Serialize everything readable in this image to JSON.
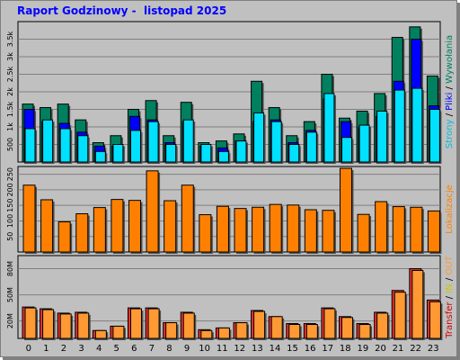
{
  "title": "Raport Godzinowy -  listopad 2025",
  "colors": {
    "background": "#c0c0c0",
    "grid": "#808080",
    "plot_bg": "#c0c0c0",
    "visits": "#00805f",
    "files": "#0000ff",
    "pages": "#00e0ff",
    "hits": "#ff8000",
    "in": "#e8e800",
    "out": "#ff9933",
    "transfer": "#d00000",
    "transfer_bar": "#e83030"
  },
  "chart_data": [
    {
      "type": "bar",
      "name": "hits-files-pages-chart",
      "categories": [
        "0",
        "1",
        "2",
        "3",
        "4",
        "5",
        "6",
        "7",
        "8",
        "9",
        "10",
        "11",
        "12",
        "13",
        "14",
        "15",
        "16",
        "17",
        "18",
        "19",
        "20",
        "21",
        "22",
        "23"
      ],
      "y_ticks": [
        "500",
        "1k",
        "1.5k",
        "2k",
        "2.5k",
        "3k",
        "3.5k"
      ],
      "ylim": [
        0,
        4000
      ],
      "legend": [
        {
          "text": "Strony",
          "color": "#00c0d0"
        },
        {
          "text": " / ",
          "color": "#000000"
        },
        {
          "text": "Pliki",
          "color": "#0000ff"
        },
        {
          "text": " / ",
          "color": "#000000"
        },
        {
          "text": "Wywołania",
          "color": "#00805f"
        }
      ],
      "series": [
        {
          "name": "Wywołania",
          "values": [
            1650,
            1550,
            1650,
            1200,
            550,
            750,
            1500,
            1750,
            750,
            1700,
            550,
            600,
            800,
            2300,
            1550,
            750,
            1150,
            2500,
            1250,
            1450,
            1950,
            3550,
            3850,
            2450
          ]
        },
        {
          "name": "Pliki",
          "values": [
            1500,
            1150,
            1100,
            850,
            450,
            450,
            1300,
            1200,
            550,
            1150,
            450,
            400,
            600,
            1150,
            1200,
            550,
            900,
            1800,
            1150,
            1000,
            1300,
            2300,
            3500,
            1600
          ]
        },
        {
          "name": "Strony",
          "values": [
            950,
            1200,
            950,
            750,
            300,
            500,
            900,
            1150,
            500,
            1200,
            500,
            300,
            600,
            1400,
            1150,
            500,
            850,
            1950,
            700,
            1050,
            1450,
            2050,
            2100,
            1500
          ]
        }
      ]
    },
    {
      "type": "bar",
      "name": "visits-chart",
      "categories": [
        "0",
        "1",
        "2",
        "3",
        "4",
        "5",
        "6",
        "7",
        "8",
        "9",
        "10",
        "11",
        "12",
        "13",
        "14",
        "15",
        "16",
        "17",
        "18",
        "19",
        "20",
        "21",
        "22",
        "23"
      ],
      "y_ticks": [
        "50",
        "100",
        "150",
        "200",
        "250"
      ],
      "ylim": [
        0,
        275
      ],
      "legend": [
        {
          "text": "Lokalizacje",
          "color": "#ff8000"
        }
      ],
      "series": [
        {
          "name": "Lokalizacje",
          "values": [
            215,
            168,
            97,
            123,
            143,
            169,
            166,
            261,
            165,
            215,
            120,
            147,
            140,
            144,
            153,
            151,
            136,
            134,
            269,
            121,
            162,
            146,
            144,
            132
          ]
        }
      ]
    },
    {
      "type": "bar",
      "name": "transfer-chart",
      "categories": [
        "0",
        "1",
        "2",
        "3",
        "4",
        "5",
        "6",
        "7",
        "8",
        "9",
        "10",
        "11",
        "12",
        "13",
        "14",
        "15",
        "16",
        "17",
        "18",
        "19",
        "20",
        "21",
        "22",
        "23"
      ],
      "y_ticks": [
        "20M",
        "50M",
        "80M"
      ],
      "ylim": [
        0,
        95
      ],
      "legend": [
        {
          "text": "Transfer",
          "color": "#d00000"
        },
        {
          "text": " / ",
          "color": "#000000"
        },
        {
          "text": "IN",
          "color": "#c8c800"
        },
        {
          "text": " / ",
          "color": "#000000"
        },
        {
          "text": "OUT",
          "color": "#ff9933"
        }
      ],
      "series": [
        {
          "name": "Transfer",
          "values": [
            36,
            34,
            29,
            30,
            9,
            14,
            35,
            35,
            18,
            30,
            10,
            12,
            18,
            32,
            25,
            17,
            17,
            35,
            25,
            17,
            30,
            55,
            80,
            44
          ]
        },
        {
          "name": "OUT",
          "values": [
            35,
            33,
            28,
            29,
            9,
            14,
            34,
            34,
            18,
            29,
            9,
            12,
            18,
            31,
            25,
            16,
            16,
            34,
            24,
            16,
            29,
            53,
            78,
            42
          ]
        }
      ]
    }
  ]
}
